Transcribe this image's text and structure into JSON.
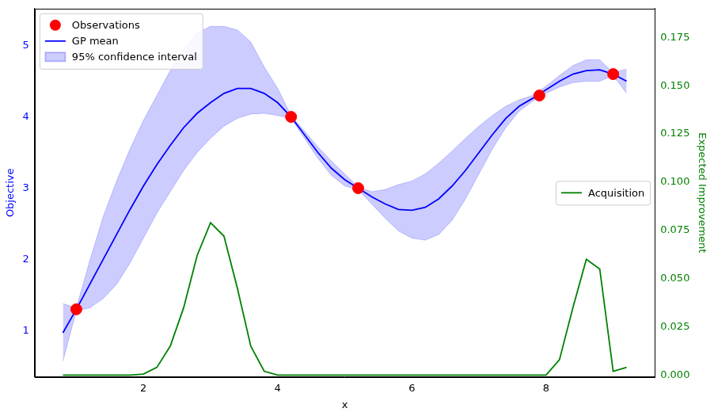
{
  "chart_data": {
    "type": "line",
    "xlabel": "x",
    "ylabel": "Objective",
    "y2label": "Expected Improvement",
    "xlim": [
      0.38,
      9.62
    ],
    "xticks": [
      2,
      4,
      6,
      8
    ],
    "ylim": [
      0.35,
      5.52
    ],
    "yticks": [
      1,
      2,
      3,
      4,
      5
    ],
    "y2lim": [
      -0.001,
      0.19
    ],
    "y2ticks": [
      {
        "value": 0,
        "label": "0.000"
      },
      {
        "value": 0.025,
        "label": "0.025"
      },
      {
        "value": 0.05,
        "label": "0.050"
      },
      {
        "value": 0.075,
        "label": "0.075"
      },
      {
        "value": 0.1,
        "label": "0.100"
      },
      {
        "value": 0.125,
        "label": "0.125"
      },
      {
        "value": 0.15,
        "label": "0.150"
      },
      {
        "value": 0.175,
        "label": "0.175"
      }
    ],
    "grid": false,
    "legend": "upper left",
    "x": [
      0.8,
      1.0,
      1.2,
      1.4,
      1.6,
      1.8,
      2.0,
      2.2,
      2.4,
      2.6,
      2.8,
      3.0,
      3.2,
      3.4,
      3.6,
      3.8,
      4.0,
      4.2,
      4.4,
      4.6,
      4.8,
      5.0,
      5.2,
      5.4,
      5.6,
      5.8,
      6.0,
      6.2,
      6.4,
      6.6,
      6.8,
      7.0,
      7.2,
      7.4,
      7.6,
      7.8,
      8.0,
      8.2,
      8.4,
      8.6,
      8.8,
      9.0,
      9.2
    ],
    "series": [
      {
        "name": "Observations",
        "type": "scatter",
        "marker": "circle",
        "color": "#ff0000",
        "x": [
          1.0,
          4.2,
          5.2,
          7.9,
          9.0
        ],
        "values": [
          1.3,
          4.0,
          3.0,
          4.3,
          4.6
        ]
      },
      {
        "name": "GP mean",
        "type": "line",
        "color": "#0000ff",
        "values": [
          0.97,
          1.3,
          1.65,
          2.0,
          2.35,
          2.7,
          3.03,
          3.33,
          3.6,
          3.85,
          4.05,
          4.2,
          4.33,
          4.4,
          4.4,
          4.33,
          4.2,
          4.0,
          3.75,
          3.5,
          3.28,
          3.12,
          3.0,
          2.88,
          2.78,
          2.7,
          2.69,
          2.73,
          2.85,
          3.03,
          3.25,
          3.5,
          3.75,
          3.98,
          4.15,
          4.26,
          4.38,
          4.5,
          4.6,
          4.65,
          4.66,
          4.6,
          4.5
        ]
      },
      {
        "name": "95% confidence interval",
        "type": "band",
        "color": "#0000ff",
        "lower": [
          0.57,
          1.28,
          1.32,
          1.45,
          1.65,
          1.95,
          2.3,
          2.65,
          2.95,
          3.25,
          3.5,
          3.7,
          3.87,
          3.98,
          4.04,
          4.05,
          4.02,
          3.98,
          3.7,
          3.42,
          3.18,
          3.03,
          2.98,
          2.78,
          2.58,
          2.4,
          2.3,
          2.27,
          2.35,
          2.55,
          2.85,
          3.2,
          3.55,
          3.85,
          4.08,
          4.22,
          4.33,
          4.42,
          4.48,
          4.5,
          4.5,
          4.58,
          4.33
        ],
        "upper": [
          1.38,
          1.32,
          1.98,
          2.6,
          3.1,
          3.55,
          3.95,
          4.3,
          4.65,
          4.95,
          5.18,
          5.27,
          5.27,
          5.22,
          5.05,
          4.7,
          4.4,
          4.02,
          3.8,
          3.58,
          3.38,
          3.2,
          3.02,
          2.95,
          2.98,
          3.05,
          3.1,
          3.2,
          3.35,
          3.52,
          3.7,
          3.87,
          4.02,
          4.15,
          4.24,
          4.3,
          4.43,
          4.58,
          4.72,
          4.8,
          4.8,
          4.62,
          4.67
        ]
      },
      {
        "name": "Acquisition",
        "type": "line",
        "axis": "y2",
        "color": "#008000",
        "values": [
          0,
          0,
          0,
          0,
          0,
          0,
          0.0005,
          0.004,
          0.015,
          0.035,
          0.062,
          0.079,
          0.072,
          0.045,
          0.015,
          0.002,
          0,
          0,
          0,
          0,
          0,
          0,
          0,
          0,
          0,
          0,
          0,
          0,
          0,
          0,
          0,
          0,
          0,
          0,
          0,
          0,
          0,
          0.008,
          0.035,
          0.06,
          0.055,
          0.002,
          0.004
        ]
      }
    ]
  }
}
